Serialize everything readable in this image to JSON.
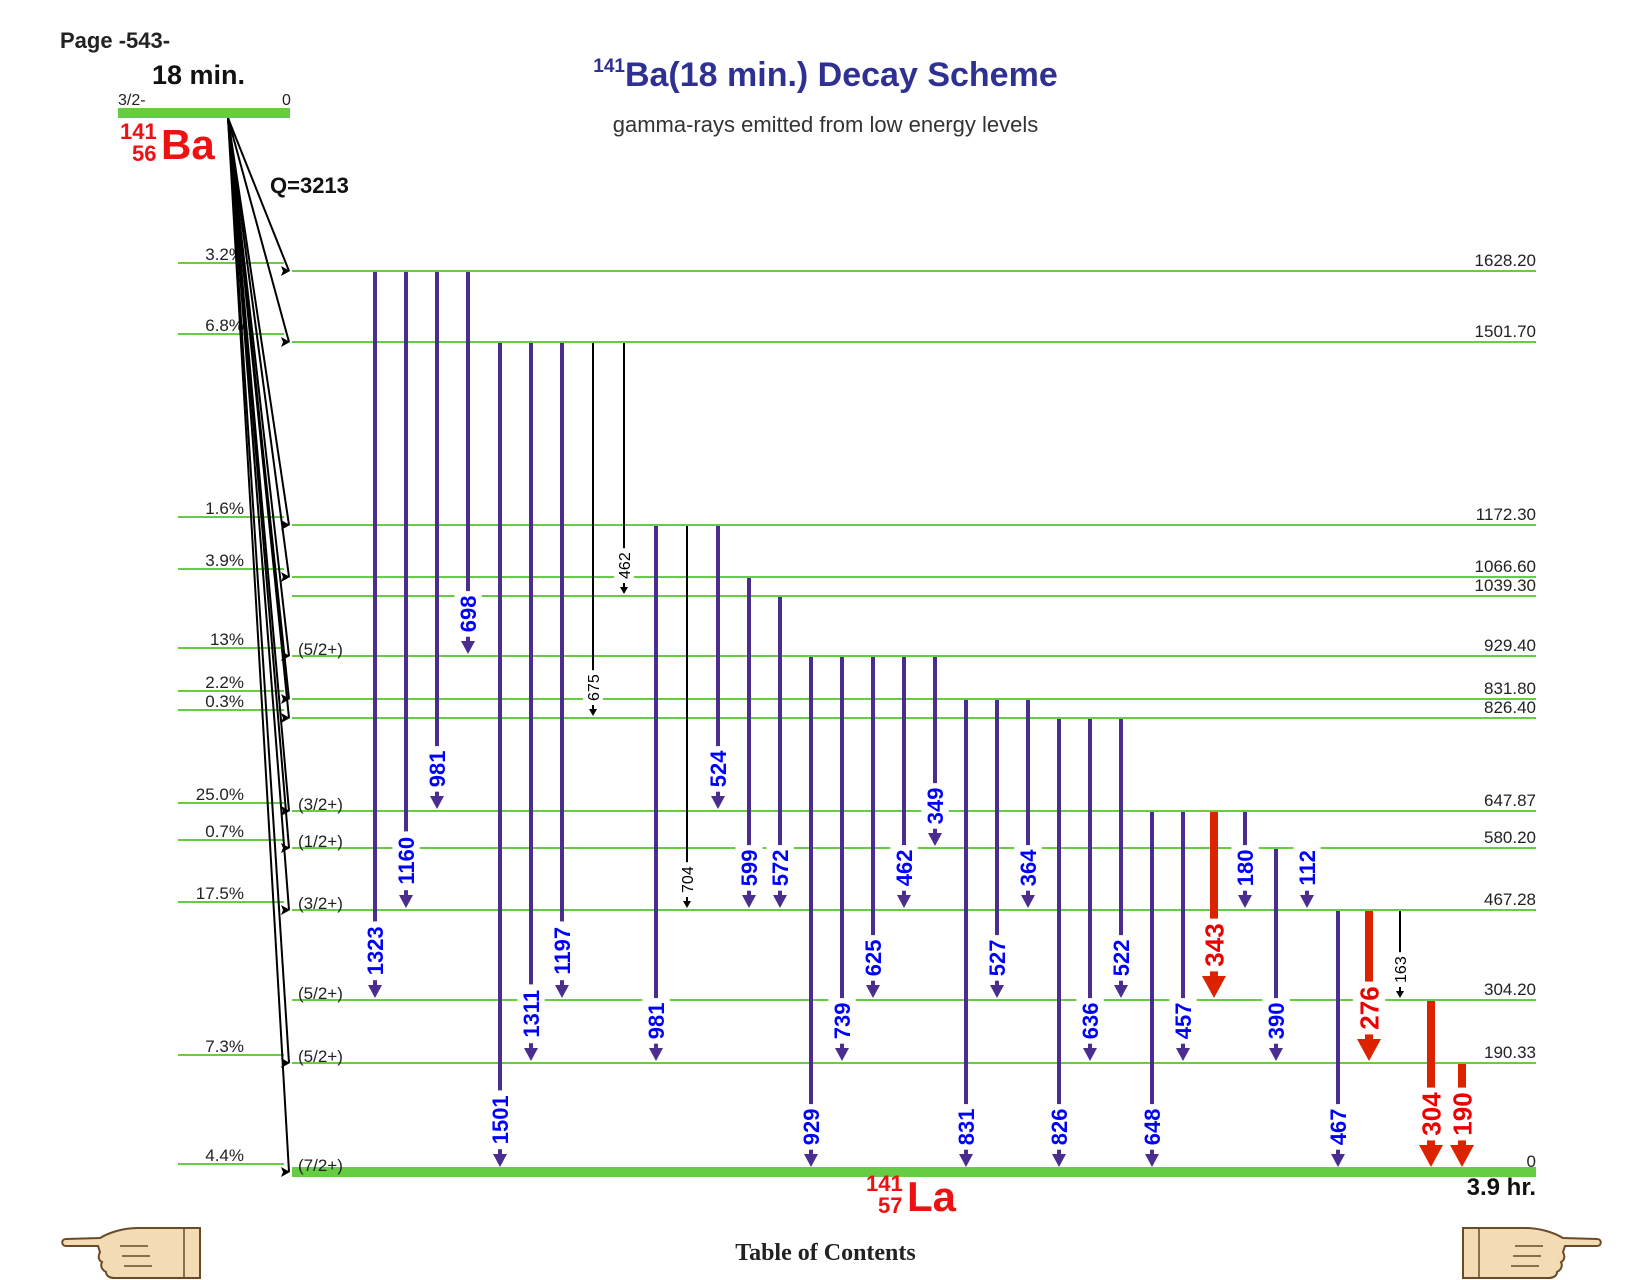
{
  "page_label": "Page -543-",
  "title": {
    "mass": "141",
    "text": "Ba(18 min.) Decay Scheme"
  },
  "subtitle": "gamma-rays emitted from low energy levels",
  "footer_link": "Table of Contents",
  "colors": {
    "level": "#66cc44",
    "gamma": "#4b2d8f",
    "gamma_label": "#0000ff",
    "strong": "#dd2200",
    "parent_text": "#ee1111",
    "title": "#2e3192"
  },
  "icons": [
    "pointing-hand-left-icon",
    "pointing-hand-right-icon"
  ],
  "parent": {
    "mass": "141",
    "z": "56",
    "symbol": "Ba",
    "halflife": "18 min.",
    "spin": "3/2-",
    "energy": "0",
    "q_value": "Q=3213"
  },
  "daughter": {
    "mass": "141",
    "z": "57",
    "symbol": "La",
    "halflife": "3.9 hr."
  },
  "chart_data": {
    "type": "decay-scheme",
    "levels": [
      {
        "energy": 1628.2,
        "label": "1628.20",
        "spin": "",
        "beta": "3.2%"
      },
      {
        "energy": 1501.7,
        "label": "1501.70",
        "spin": "",
        "beta": "6.8%"
      },
      {
        "energy": 1172.3,
        "label": "1172.30",
        "spin": "",
        "beta": "1.6%"
      },
      {
        "energy": 1066.6,
        "label": "1066.60",
        "spin": "",
        "beta": "3.9%"
      },
      {
        "energy": 1039.3,
        "label": "1039.30",
        "spin": "",
        "beta": ""
      },
      {
        "energy": 929.4,
        "label": "929.40",
        "spin": "(5/2+)",
        "beta": "13%"
      },
      {
        "energy": 831.8,
        "label": "831.80",
        "spin": "",
        "beta": "2.2%"
      },
      {
        "energy": 826.4,
        "label": "826.40",
        "spin": "",
        "beta": "0.3%"
      },
      {
        "energy": 647.87,
        "label": "647.87",
        "spin": "(3/2+)",
        "beta": "25.0%"
      },
      {
        "energy": 580.2,
        "label": "580.20",
        "spin": "(1/2+)",
        "beta": "0.7%"
      },
      {
        "energy": 467.28,
        "label": "467.28",
        "spin": "(3/2+)",
        "beta": "17.5%"
      },
      {
        "energy": 304.2,
        "label": "304.20",
        "spin": "(5/2+)",
        "beta": ""
      },
      {
        "energy": 190.33,
        "label": "190.33",
        "spin": "(5/2+)",
        "beta": "7.3%"
      },
      {
        "energy": 0,
        "label": "0",
        "spin": "(7/2+)",
        "beta": "4.4%"
      }
    ],
    "gammas": [
      {
        "label": "1323",
        "from": 1628.2,
        "to": 304.2,
        "style": "medium"
      },
      {
        "label": "1160",
        "from": 1628.2,
        "to": 467.28,
        "style": "medium"
      },
      {
        "label": "981",
        "from": 1628.2,
        "to": 647.87,
        "style": "medium"
      },
      {
        "label": "698",
        "from": 1628.2,
        "to": 929.4,
        "style": "medium"
      },
      {
        "label": "1501",
        "from": 1501.7,
        "to": 0,
        "style": "medium"
      },
      {
        "label": "1311",
        "from": 1501.7,
        "to": 190.33,
        "style": "medium"
      },
      {
        "label": "1197",
        "from": 1501.7,
        "to": 304.2,
        "style": "medium"
      },
      {
        "label": "675",
        "from": 1501.7,
        "to": 826.4,
        "style": "weak"
      },
      {
        "label": "462",
        "from": 1501.7,
        "to": 1039.3,
        "style": "weak"
      },
      {
        "label": "981",
        "from": 1172.3,
        "to": 190.33,
        "style": "medium"
      },
      {
        "label": "704",
        "from": 1172.3,
        "to": 467.28,
        "style": "weak"
      },
      {
        "label": "524",
        "from": 1172.3,
        "to": 647.87,
        "style": "medium"
      },
      {
        "label": "599",
        "from": 1066.6,
        "to": 467.28,
        "style": "medium"
      },
      {
        "label": "572",
        "from": 1039.3,
        "to": 467.28,
        "style": "medium"
      },
      {
        "label": "929",
        "from": 929.4,
        "to": 0,
        "style": "medium"
      },
      {
        "label": "739",
        "from": 929.4,
        "to": 190.33,
        "style": "medium"
      },
      {
        "label": "625",
        "from": 929.4,
        "to": 304.2,
        "style": "medium"
      },
      {
        "label": "462",
        "from": 929.4,
        "to": 467.28,
        "style": "medium"
      },
      {
        "label": "349",
        "from": 929.4,
        "to": 580.2,
        "style": "medium"
      },
      {
        "label": "831",
        "from": 831.8,
        "to": 0,
        "style": "medium"
      },
      {
        "label": "527",
        "from": 831.8,
        "to": 304.2,
        "style": "medium"
      },
      {
        "label": "364",
        "from": 831.8,
        "to": 467.28,
        "style": "medium"
      },
      {
        "label": "826",
        "from": 826.4,
        "to": 0,
        "style": "medium"
      },
      {
        "label": "636",
        "from": 826.4,
        "to": 190.33,
        "style": "medium"
      },
      {
        "label": "522",
        "from": 826.4,
        "to": 304.2,
        "style": "medium"
      },
      {
        "label": "648",
        "from": 647.87,
        "to": 0,
        "style": "medium"
      },
      {
        "label": "457",
        "from": 647.87,
        "to": 190.33,
        "style": "medium"
      },
      {
        "label": "343",
        "from": 647.87,
        "to": 304.2,
        "style": "strong"
      },
      {
        "label": "180",
        "from": 647.87,
        "to": 467.28,
        "style": "medium"
      },
      {
        "label": "390",
        "from": 580.2,
        "to": 190.33,
        "style": "medium"
      },
      {
        "label": "112",
        "from": 580.2,
        "to": 467.28,
        "style": "medium"
      },
      {
        "label": "467",
        "from": 467.28,
        "to": 0,
        "style": "medium"
      },
      {
        "label": "276",
        "from": 467.28,
        "to": 190.33,
        "style": "strong"
      },
      {
        "label": "163",
        "from": 467.28,
        "to": 304.2,
        "style": "weak"
      },
      {
        "label": "304",
        "from": 304.2,
        "to": 0,
        "style": "strong"
      },
      {
        "label": "190",
        "from": 190.33,
        "to": 0,
        "style": "strong"
      }
    ]
  }
}
